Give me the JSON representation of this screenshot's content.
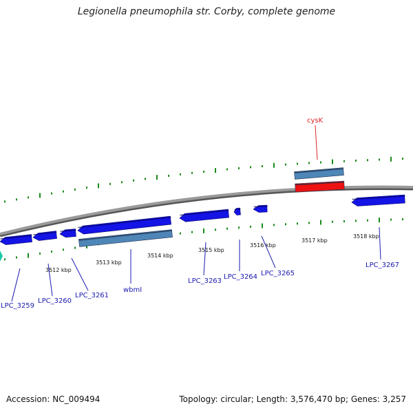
{
  "title": "Legionella pneumophila str. Corby, complete genome",
  "footer": {
    "accession": "Accession: NC_009494",
    "summary": "Topology: circular; Length: 3,576,470 bp; Genes: 3,257"
  },
  "colors": {
    "backbone": "#8a8a8a",
    "tick": "#1a8a1a",
    "forward_gene": "#1414e6",
    "reverse_gene": "#1414e6",
    "rna_gene": "#4f86b8",
    "highlight_gene": "#ee1111",
    "label_default": "#1a1ab0",
    "label_highlight": "#dd2222",
    "teal": "#17c9a5"
  },
  "scale_labels": [
    "3512 kbp",
    "3513 kbp",
    "3514 kbp",
    "3515 kbp",
    "3516 kbp",
    "3517 kbp",
    "3518 kbp"
  ],
  "gene_labels": [
    {
      "name": "cysK",
      "highlight": true
    },
    {
      "name": "LPC_3259"
    },
    {
      "name": "LPC_3260"
    },
    {
      "name": "LPC_3261"
    },
    {
      "name": "wbmI"
    },
    {
      "name": "LPC_3263"
    },
    {
      "name": "LPC_3264"
    },
    {
      "name": "LPC_3265"
    },
    {
      "name": "LPC_3267"
    }
  ]
}
